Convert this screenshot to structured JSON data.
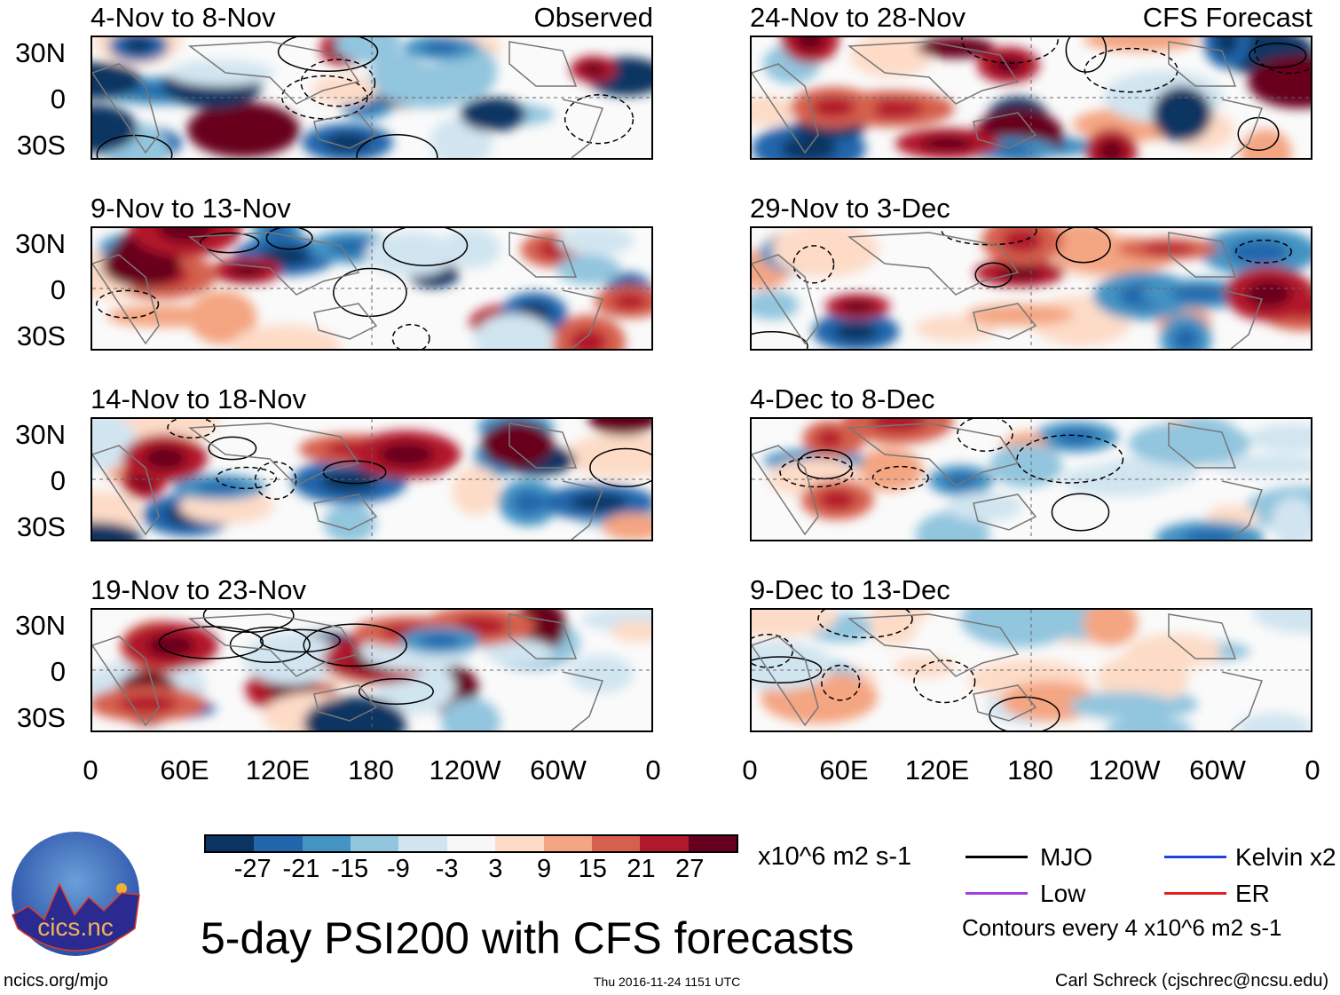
{
  "title": "5-day PSI200 with CFS forecasts",
  "left_column_label": "Observed",
  "right_column_label": "CFS Forecast",
  "panels_left": [
    "4-Nov to 8-Nov",
    "9-Nov to 13-Nov",
    "14-Nov to 18-Nov",
    "19-Nov to 23-Nov"
  ],
  "panels_right": [
    "24-Nov to 28-Nov",
    "29-Nov to 3-Dec",
    "4-Dec to 8-Dec",
    "9-Dec to 13-Dec"
  ],
  "lat_labels": [
    "30N",
    "0",
    "30S"
  ],
  "lon_labels": [
    "0",
    "60E",
    "120E",
    "180",
    "120W",
    "60W",
    "0"
  ],
  "colorbar": {
    "colors": [
      "#0b3462",
      "#2166ac",
      "#4393c3",
      "#92c5de",
      "#d1e5f0",
      "#f7f7f7",
      "#fddbc7",
      "#f4a582",
      "#d6604d",
      "#b2182b",
      "#67001f"
    ],
    "labels": [
      "-27",
      "-21",
      "-15",
      "-9",
      "-3",
      "3",
      "9",
      "15",
      "21",
      "27"
    ],
    "units": "x10^6 m2 s-1"
  },
  "legend": {
    "items": [
      {
        "label": "MJO",
        "color": "#000000"
      },
      {
        "label": "Kelvin x2",
        "color": "#2040e0"
      },
      {
        "label": "Low",
        "color": "#a040e0"
      },
      {
        "label": "ER",
        "color": "#e02020"
      }
    ],
    "note": "Contours every 4 x10^6 m2 s-1"
  },
  "logo_text": "cics.nc",
  "logo_ring_text": "Cooperative Institute for Climate and Satellites",
  "footer": {
    "url": "ncics.org/mjo",
    "timestamp": "Thu 2016-11-24 1151 UTC",
    "credit": "Carl Schreck (cjschrec@ncsu.edu)"
  }
}
